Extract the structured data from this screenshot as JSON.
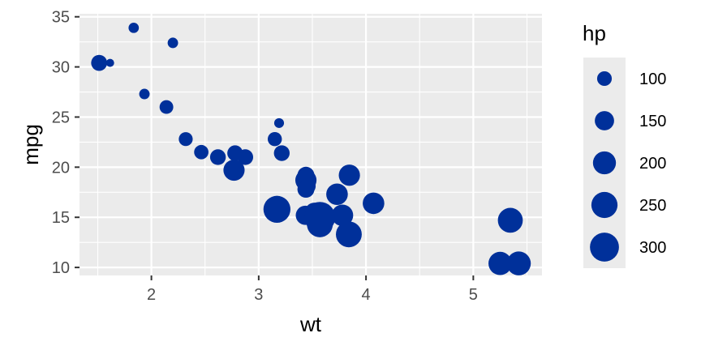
{
  "chart_data": {
    "type": "scatter",
    "title": "",
    "xlabel": "wt",
    "ylabel": "mpg",
    "xlim": [
      1.33,
      5.64
    ],
    "ylim": [
      9.2,
      35.3
    ],
    "x_ticks": [
      2,
      3,
      4,
      5
    ],
    "y_ticks": [
      10,
      15,
      20,
      25,
      30,
      35
    ],
    "grid": true,
    "point_color": "#00309A",
    "panel_color": "#EBEBEB",
    "size_variable": "hp",
    "size_range": [
      52,
      335
    ],
    "legend": {
      "title": "hp",
      "placement": "right",
      "values": [
        100,
        150,
        200,
        250,
        300
      ]
    },
    "points": [
      {
        "x": 2.62,
        "y": 21.0,
        "hp": 110
      },
      {
        "x": 2.875,
        "y": 21.0,
        "hp": 110
      },
      {
        "x": 2.32,
        "y": 22.8,
        "hp": 93
      },
      {
        "x": 3.215,
        "y": 21.4,
        "hp": 110
      },
      {
        "x": 3.44,
        "y": 18.7,
        "hp": 175
      },
      {
        "x": 3.46,
        "y": 18.1,
        "hp": 105
      },
      {
        "x": 3.57,
        "y": 14.3,
        "hp": 245
      },
      {
        "x": 3.19,
        "y": 24.4,
        "hp": 62
      },
      {
        "x": 3.15,
        "y": 22.8,
        "hp": 95
      },
      {
        "x": 3.44,
        "y": 19.2,
        "hp": 123
      },
      {
        "x": 3.44,
        "y": 17.8,
        "hp": 123
      },
      {
        "x": 4.07,
        "y": 16.4,
        "hp": 180
      },
      {
        "x": 3.73,
        "y": 17.3,
        "hp": 180
      },
      {
        "x": 3.78,
        "y": 15.2,
        "hp": 180
      },
      {
        "x": 5.25,
        "y": 10.4,
        "hp": 205
      },
      {
        "x": 5.424,
        "y": 10.4,
        "hp": 215
      },
      {
        "x": 5.345,
        "y": 14.7,
        "hp": 230
      },
      {
        "x": 2.2,
        "y": 32.4,
        "hp": 66
      },
      {
        "x": 1.615,
        "y": 30.4,
        "hp": 52
      },
      {
        "x": 1.835,
        "y": 33.9,
        "hp": 65
      },
      {
        "x": 2.465,
        "y": 21.5,
        "hp": 97
      },
      {
        "x": 3.52,
        "y": 15.5,
        "hp": 150
      },
      {
        "x": 3.435,
        "y": 15.2,
        "hp": 150
      },
      {
        "x": 3.84,
        "y": 13.3,
        "hp": 245
      },
      {
        "x": 3.845,
        "y": 19.2,
        "hp": 175
      },
      {
        "x": 1.935,
        "y": 27.3,
        "hp": 66
      },
      {
        "x": 2.14,
        "y": 26.0,
        "hp": 91
      },
      {
        "x": 1.513,
        "y": 30.4,
        "hp": 113
      },
      {
        "x": 3.17,
        "y": 15.8,
        "hp": 264
      },
      {
        "x": 2.77,
        "y": 19.7,
        "hp": 175
      },
      {
        "x": 3.57,
        "y": 15.0,
        "hp": 335
      },
      {
        "x": 2.78,
        "y": 21.4,
        "hp": 109
      }
    ]
  }
}
